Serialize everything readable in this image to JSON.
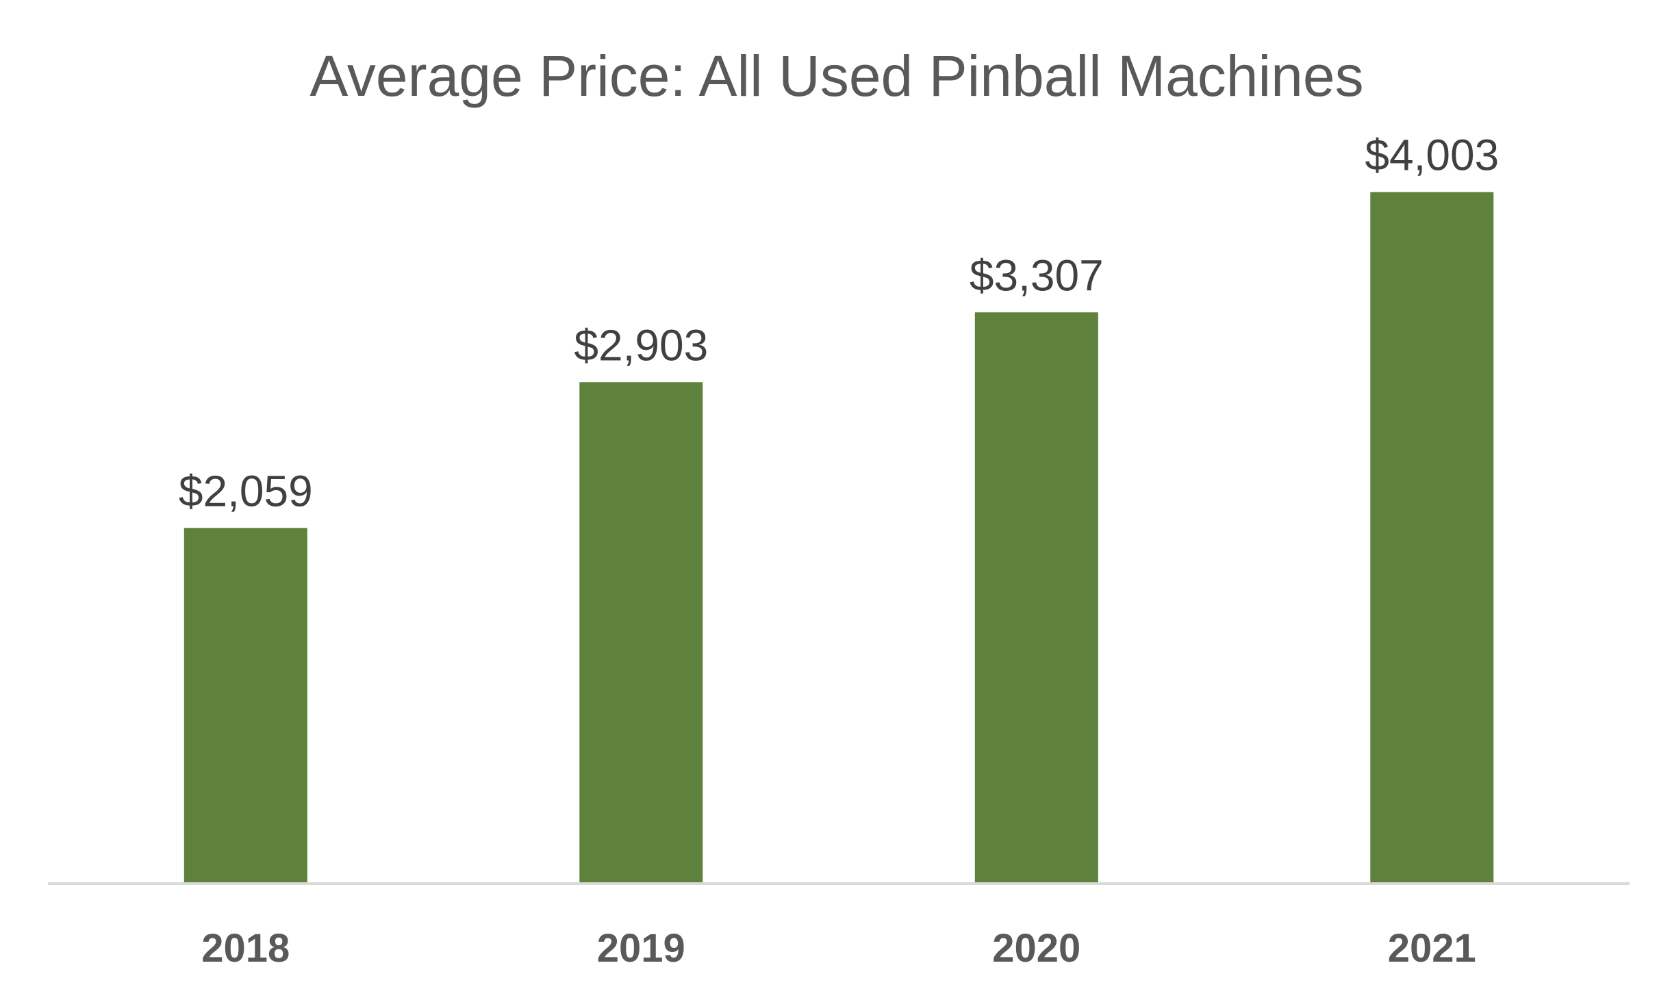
{
  "chart_data": {
    "type": "bar",
    "title": "Average Price: All Used Pinball Machines",
    "xlabel": "",
    "ylabel": "",
    "categories": [
      "2018",
      "2019",
      "2020",
      "2021"
    ],
    "values": [
      2059,
      2903,
      3307,
      4003
    ],
    "data_labels": [
      "$2,059",
      "$2,903",
      "$3,307",
      "$4,003"
    ],
    "ylim": [
      0,
      4600
    ],
    "grid": false,
    "legend": "none",
    "bar_color": "#5e813c",
    "axis_color": "#d9d9d9"
  }
}
